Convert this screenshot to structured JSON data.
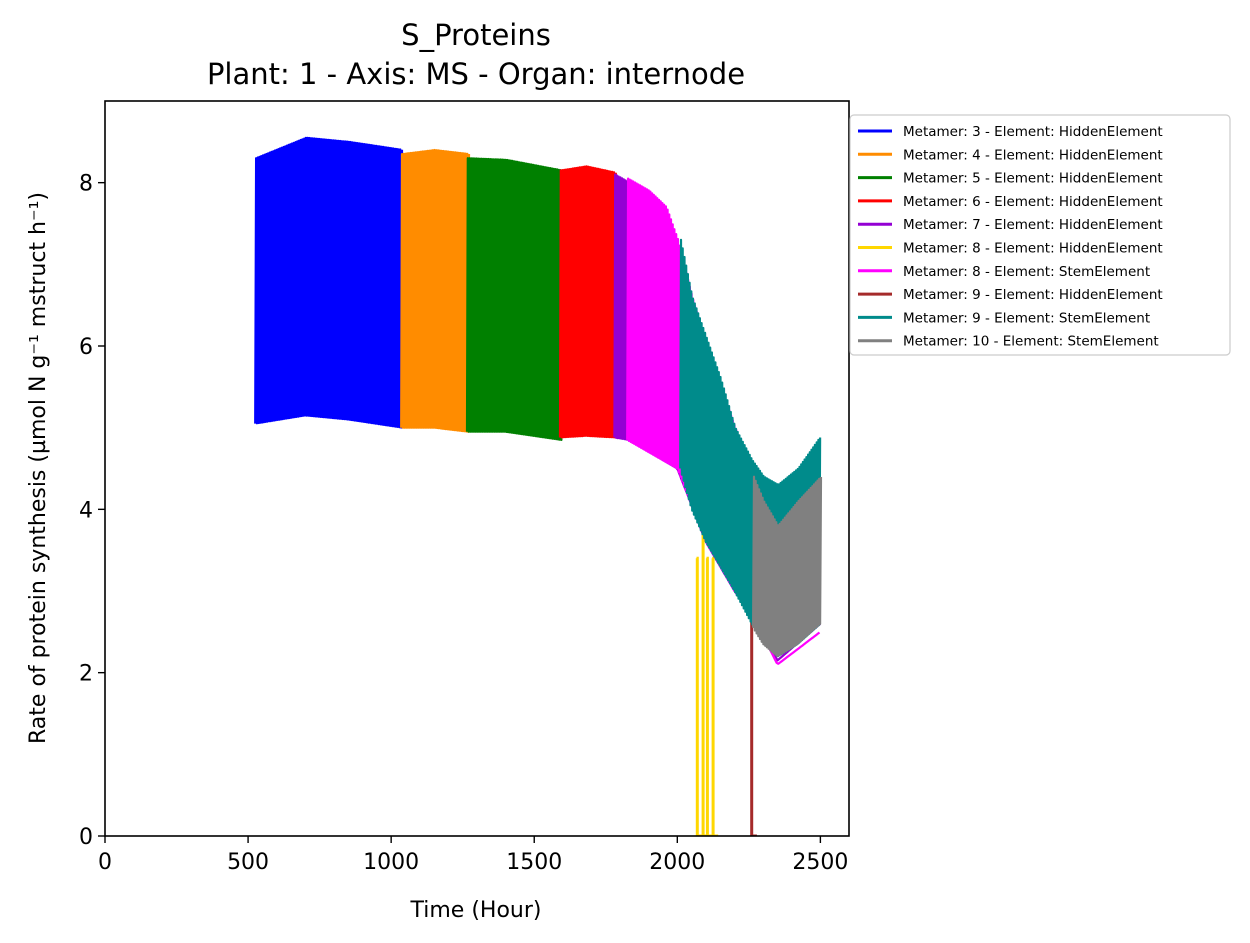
{
  "chart_data": {
    "type": "line",
    "title": "S_Proteins",
    "subtitle": "Plant: 1 - Axis: MS - Organ: internode",
    "xlabel": "Time (Hour)",
    "ylabel": "Rate of protein synthesis (µmol N g⁻¹ mstruct h⁻¹)",
    "xlim": [
      0,
      2600
    ],
    "ylim": [
      0,
      9
    ],
    "xticks": [
      "0",
      "500",
      "1000",
      "1500",
      "2000",
      "2500"
    ],
    "yticks": [
      "0",
      "2",
      "4",
      "6",
      "8"
    ],
    "legend_position": "outside-right",
    "grid": false,
    "series": [
      {
        "name": "Metamer: 3 - Element: HiddenElement",
        "color": "#0000ff",
        "x_range": [
          525,
          1040
        ],
        "upper": [
          [
            525,
            8.3
          ],
          [
            700,
            8.55
          ],
          [
            850,
            8.5
          ],
          [
            1040,
            8.4
          ]
        ],
        "lower": [
          [
            525,
            5.05
          ],
          [
            700,
            5.15
          ],
          [
            850,
            5.1
          ],
          [
            1040,
            5.0
          ]
        ]
      },
      {
        "name": "Metamer: 4 - Element: HiddenElement",
        "color": "#ff8c00",
        "x_range": [
          1035,
          1270
        ],
        "upper": [
          [
            1035,
            8.35
          ],
          [
            1150,
            8.4
          ],
          [
            1270,
            8.35
          ]
        ],
        "lower": [
          [
            1035,
            5.0
          ],
          [
            1150,
            5.0
          ],
          [
            1270,
            4.95
          ]
        ]
      },
      {
        "name": "Metamer: 5 - Element: HiddenElement",
        "color": "#008000",
        "x_range": [
          1265,
          1595
        ],
        "upper": [
          [
            1265,
            8.3
          ],
          [
            1400,
            8.28
          ],
          [
            1595,
            8.15
          ]
        ],
        "lower": [
          [
            1265,
            4.95
          ],
          [
            1400,
            4.95
          ],
          [
            1595,
            4.85
          ]
        ]
      },
      {
        "name": "Metamer: 6 - Element: HiddenElement",
        "color": "#ff0000",
        "x_range": [
          1590,
          1785
        ],
        "upper": [
          [
            1590,
            8.15
          ],
          [
            1680,
            8.2
          ],
          [
            1785,
            8.12
          ]
        ],
        "lower": [
          [
            1590,
            4.88
          ],
          [
            1680,
            4.9
          ],
          [
            1785,
            4.88
          ]
        ]
      },
      {
        "name": "Metamer: 7 - Element: HiddenElement",
        "color": "#9400d3",
        "x_range": [
          1780,
          2500
        ],
        "upper": [
          [
            1780,
            8.1
          ],
          [
            1830,
            8.0
          ]
        ],
        "lower": [
          [
            1780,
            4.88
          ],
          [
            1830,
            4.85
          ],
          [
            2000,
            4.5
          ],
          [
            2100,
            3.6
          ],
          [
            2200,
            3.0
          ],
          [
            2300,
            2.5
          ],
          [
            2350,
            2.15
          ],
          [
            2500,
            2.6
          ]
        ]
      },
      {
        "name": "Metamer: 8 - Element: HiddenElement",
        "color": "#ffd700",
        "x_range": [
          2060,
          2130
        ],
        "drops": [
          [
            2070,
            3.4
          ],
          [
            2090,
            3.9
          ],
          [
            2105,
            3.4
          ],
          [
            2125,
            3.4
          ]
        ]
      },
      {
        "name": "Metamer: 8 - Element: StemElement",
        "color": "#ff00ff",
        "x_range": [
          1825,
          2500
        ],
        "upper": [
          [
            1825,
            8.05
          ],
          [
            1900,
            7.9
          ],
          [
            1960,
            7.7
          ],
          [
            2000,
            7.3
          ],
          [
            2050,
            6.6
          ],
          [
            2100,
            6.0
          ],
          [
            2150,
            5.5
          ],
          [
            2200,
            5.0
          ],
          [
            2250,
            4.5
          ]
        ],
        "lower": [
          [
            1825,
            4.85
          ],
          [
            1900,
            4.7
          ],
          [
            2000,
            4.5
          ],
          [
            2100,
            3.6
          ],
          [
            2200,
            3.0
          ],
          [
            2300,
            2.45
          ],
          [
            2350,
            2.1
          ],
          [
            2500,
            2.5
          ]
        ]
      },
      {
        "name": "Metamer: 9 - Element: HiddenElement",
        "color": "#a52a2a",
        "x_range": [
          2255,
          2300
        ],
        "drops": [
          [
            2260,
            2.9
          ]
        ]
      },
      {
        "name": "Metamer: 9 - Element: StemElement",
        "color": "#008b8b",
        "x_range": [
          2010,
          2500
        ],
        "upper": [
          [
            2010,
            7.3
          ],
          [
            2050,
            6.6
          ],
          [
            2100,
            6.1
          ],
          [
            2150,
            5.6
          ],
          [
            2200,
            5.0
          ],
          [
            2260,
            4.6
          ],
          [
            2300,
            4.4
          ],
          [
            2350,
            4.3
          ],
          [
            2420,
            4.5
          ],
          [
            2500,
            4.9
          ]
        ],
        "lower": [
          [
            2010,
            4.5
          ],
          [
            2050,
            4.0
          ],
          [
            2100,
            3.6
          ],
          [
            2150,
            3.3
          ],
          [
            2200,
            3.0
          ],
          [
            2260,
            2.6
          ],
          [
            2300,
            2.4
          ],
          [
            2350,
            2.2
          ],
          [
            2420,
            2.35
          ],
          [
            2500,
            2.6
          ]
        ]
      },
      {
        "name": "Metamer: 10 - Element: StemElement",
        "color": "#808080",
        "x_range": [
          2265,
          2500
        ],
        "upper": [
          [
            2265,
            4.4
          ],
          [
            2300,
            4.1
          ],
          [
            2350,
            3.8
          ],
          [
            2420,
            4.1
          ],
          [
            2500,
            4.4
          ]
        ],
        "lower": [
          [
            2265,
            2.55
          ],
          [
            2300,
            2.35
          ],
          [
            2350,
            2.2
          ],
          [
            2420,
            2.35
          ],
          [
            2500,
            2.6
          ]
        ]
      }
    ]
  }
}
